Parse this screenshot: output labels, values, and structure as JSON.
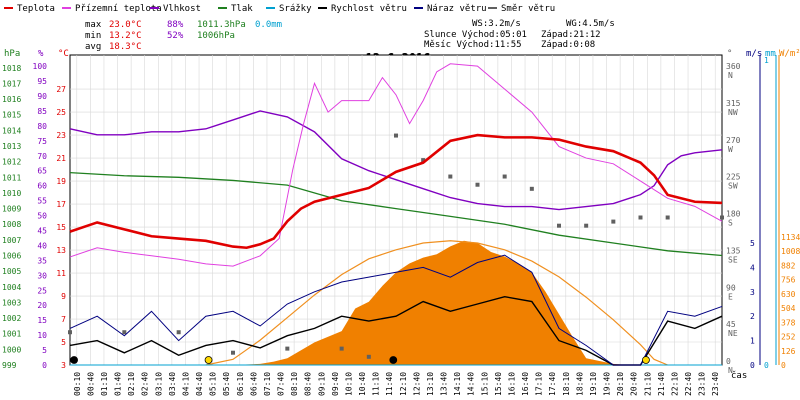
{
  "legend": [
    {
      "label": "Teplota",
      "color": "#e00000"
    },
    {
      "label": "Přízemní teplota",
      "color": "#e040e0"
    },
    {
      "label": "Vlhkost",
      "color": "#8000c0"
    },
    {
      "label": "Tlak",
      "color": "#208020"
    },
    {
      "label": "Srážky",
      "color": "#00a0d0"
    },
    {
      "label": "Rychlost větru",
      "color": "#000000"
    },
    {
      "label": "Náraz větru",
      "color": "#000080"
    },
    {
      "label": "Směr větru",
      "color": "#606060"
    }
  ],
  "stats": {
    "max_label": "max",
    "max_temp": "23.0°C",
    "max_hum": "88%",
    "max_press": "1011.3hPa",
    "max_rain": "0.0mm",
    "min_label": "min",
    "min_temp": "13.2°C",
    "min_hum": "52%",
    "min_press": "1006hPa",
    "avg_label": "avg",
    "avg_temp": "18.3°C"
  },
  "wind_info": {
    "ws": "WS:3.2m/s",
    "wg": "WG:4.5m/s"
  },
  "sun_info": {
    "rise": "Slunce Východ:05:01",
    "set": "Západ:21:12"
  },
  "moon_info": {
    "rise": "Měsíc  Východ:11:55",
    "set": "Západ:0:08"
  },
  "chart_title": "12.6.2016",
  "axis_units": {
    "hpa": "hPa",
    "pct": "%",
    "degc": "°C",
    "deg": "°",
    "ms": "m/s",
    "mm": "mm",
    "wm2": "W/m²",
    "time": "čas"
  },
  "colors": {
    "temp": "#e00000",
    "ground": "#e040e0",
    "hum": "#8000c0",
    "press": "#208020",
    "rain": "#00a0d0",
    "wind": "#000000",
    "gust": "#000080",
    "dir": "#606060",
    "sun_fill": "#f08000",
    "sun_curve": "#f09020",
    "grid": "#d8d8d8",
    "moon": "#ffd800"
  },
  "chart_data": {
    "type": "line",
    "title": "12.6.2016",
    "x_ticks": [
      "00:10",
      "00:40",
      "01:10",
      "01:40",
      "02:10",
      "02:40",
      "03:10",
      "03:40",
      "04:10",
      "04:40",
      "05:10",
      "05:40",
      "06:10",
      "06:40",
      "07:10",
      "07:40",
      "08:10",
      "08:40",
      "09:10",
      "09:40",
      "10:10",
      "10:40",
      "11:10",
      "11:40",
      "12:10",
      "12:40",
      "13:10",
      "13:40",
      "14:10",
      "14:40",
      "15:10",
      "15:40",
      "16:10",
      "16:40",
      "17:10",
      "17:40",
      "18:10",
      "18:40",
      "19:10",
      "19:40",
      "20:10",
      "20:40",
      "21:10",
      "21:40",
      "22:10",
      "22:40",
      "23:10",
      "23:40"
    ],
    "axes": {
      "hpa": {
        "label": "hPa",
        "ticks": [
          999,
          1000,
          1001,
          1002,
          1003,
          1004,
          1005,
          1006,
          1007,
          1008,
          1009,
          1010,
          1011,
          1012,
          1013,
          1014,
          1015,
          1016,
          1017,
          1018
        ]
      },
      "pct": {
        "label": "%",
        "ticks": [
          0,
          5,
          10,
          15,
          20,
          25,
          30,
          35,
          40,
          45,
          50,
          55,
          60,
          65,
          70,
          75,
          80,
          85,
          90,
          95,
          100
        ]
      },
      "degc": {
        "label": "°C",
        "ticks": [
          3,
          5,
          7,
          9,
          11,
          13,
          15,
          17,
          19,
          21,
          23,
          25,
          27
        ]
      },
      "dir": {
        "label": "°",
        "ticks": [
          {
            "v": 0,
            "t": "0",
            "c": "N"
          },
          {
            "v": 45,
            "t": "45",
            "c": "NE"
          },
          {
            "v": 90,
            "t": "90",
            "c": "E"
          },
          {
            "v": 135,
            "t": "135",
            "c": "SE"
          },
          {
            "v": 180,
            "t": "180",
            "c": "S"
          },
          {
            "v": 225,
            "t": "225",
            "c": "SW"
          },
          {
            "v": 270,
            "t": "270",
            "c": "W"
          },
          {
            "v": 315,
            "t": "315",
            "c": "NW"
          },
          {
            "v": 360,
            "t": "360",
            "c": "N"
          }
        ]
      },
      "ms": {
        "label": "m/s",
        "ticks": [
          0,
          1,
          2,
          3,
          4,
          5
        ]
      },
      "mm": {
        "label": "mm",
        "ticks": [
          0,
          1
        ]
      },
      "wm2": {
        "label": "W/m²",
        "ticks": [
          0,
          126,
          252,
          378,
          504,
          630,
          756,
          882,
          1008,
          1134
        ]
      }
    },
    "series": [
      {
        "name": "Teplota",
        "unit": "°C",
        "points": [
          [
            0,
            14.6
          ],
          [
            1,
            15.4
          ],
          [
            2,
            14.8
          ],
          [
            3,
            14.2
          ],
          [
            4,
            14.0
          ],
          [
            5,
            13.8
          ],
          [
            6,
            13.3
          ],
          [
            6.5,
            13.2
          ],
          [
            7,
            13.5
          ],
          [
            7.5,
            14.0
          ],
          [
            8,
            15.5
          ],
          [
            8.5,
            16.6
          ],
          [
            9,
            17.2
          ],
          [
            10,
            17.8
          ],
          [
            11,
            18.4
          ],
          [
            12,
            19.8
          ],
          [
            13,
            20.6
          ],
          [
            14,
            22.5
          ],
          [
            15,
            23.0
          ],
          [
            16,
            22.8
          ],
          [
            17,
            22.8
          ],
          [
            18,
            22.6
          ],
          [
            19,
            22.0
          ],
          [
            20,
            21.6
          ],
          [
            21,
            20.6
          ],
          [
            21.5,
            19.5
          ],
          [
            22,
            17.8
          ],
          [
            23,
            17.2
          ],
          [
            24,
            17.1
          ]
        ]
      },
      {
        "name": "Přízemní teplota",
        "unit": "°C",
        "points": [
          [
            0,
            12.4
          ],
          [
            1,
            13.2
          ],
          [
            2,
            12.8
          ],
          [
            3,
            12.5
          ],
          [
            4,
            12.2
          ],
          [
            5,
            11.8
          ],
          [
            6,
            11.6
          ],
          [
            7,
            12.5
          ],
          [
            7.7,
            14
          ],
          [
            8.2,
            20
          ],
          [
            8.6,
            24
          ],
          [
            9,
            27.5
          ],
          [
            9.5,
            25
          ],
          [
            10,
            26
          ],
          [
            11,
            26
          ],
          [
            11.5,
            28
          ],
          [
            12,
            26.5
          ],
          [
            12.5,
            24
          ],
          [
            13,
            26
          ],
          [
            13.5,
            28.5
          ],
          [
            14,
            29.2
          ],
          [
            15,
            29.0
          ],
          [
            15.5,
            28
          ],
          [
            16,
            27
          ],
          [
            17,
            25
          ],
          [
            17.5,
            23.5
          ],
          [
            18,
            22
          ],
          [
            19,
            21
          ],
          [
            20,
            20.5
          ],
          [
            21,
            19.0
          ],
          [
            22,
            17.5
          ],
          [
            23,
            16.8
          ],
          [
            24,
            15.5
          ]
        ]
      },
      {
        "name": "Vlhkost",
        "unit": "%",
        "points": [
          [
            0,
            79
          ],
          [
            1,
            77
          ],
          [
            2,
            77
          ],
          [
            3,
            78
          ],
          [
            4,
            78
          ],
          [
            5,
            79
          ],
          [
            6,
            82
          ],
          [
            7,
            85
          ],
          [
            8,
            83
          ],
          [
            9,
            78
          ],
          [
            10,
            69
          ],
          [
            11,
            65
          ],
          [
            12,
            62
          ],
          [
            13,
            59
          ],
          [
            14,
            56
          ],
          [
            15,
            54
          ],
          [
            16,
            53
          ],
          [
            17,
            53
          ],
          [
            18,
            52
          ],
          [
            19,
            53
          ],
          [
            20,
            54
          ],
          [
            21,
            57
          ],
          [
            21.5,
            60
          ],
          [
            22,
            67
          ],
          [
            22.5,
            70
          ],
          [
            23,
            71
          ],
          [
            24,
            72
          ]
        ]
      },
      {
        "name": "Tlak",
        "unit": "hPa",
        "points": [
          [
            0,
            1011.3
          ],
          [
            2,
            1011.1
          ],
          [
            4,
            1011.0
          ],
          [
            6,
            1010.8
          ],
          [
            8,
            1010.5
          ],
          [
            10,
            1009.5
          ],
          [
            12,
            1009.0
          ],
          [
            14,
            1008.5
          ],
          [
            16,
            1008.0
          ],
          [
            18,
            1007.3
          ],
          [
            20,
            1006.8
          ],
          [
            22,
            1006.3
          ],
          [
            24,
            1006.0
          ]
        ]
      },
      {
        "name": "Srážky",
        "unit": "mm",
        "points": [
          [
            0,
            0
          ],
          [
            24,
            0
          ]
        ]
      },
      {
        "name": "Rychlost větru",
        "unit": "m/s",
        "points": [
          [
            0,
            0.8
          ],
          [
            1,
            1.0
          ],
          [
            2,
            0.5
          ],
          [
            3,
            1.0
          ],
          [
            4,
            0.4
          ],
          [
            5,
            0.8
          ],
          [
            6,
            1.0
          ],
          [
            7,
            0.7
          ],
          [
            8,
            1.2
          ],
          [
            9,
            1.5
          ],
          [
            10,
            2.0
          ],
          [
            11,
            1.8
          ],
          [
            12,
            2.0
          ],
          [
            13,
            2.6
          ],
          [
            14,
            2.2
          ],
          [
            15,
            2.5
          ],
          [
            16,
            2.8
          ],
          [
            17,
            2.6
          ],
          [
            18,
            1.0
          ],
          [
            19,
            0.6
          ],
          [
            20,
            0
          ],
          [
            21,
            0
          ],
          [
            22,
            1.8
          ],
          [
            23,
            1.5
          ],
          [
            24,
            2.0
          ]
        ]
      },
      {
        "name": "Náraz větru",
        "unit": "m/s",
        "points": [
          [
            0,
            1.5
          ],
          [
            1,
            2.0
          ],
          [
            2,
            1.2
          ],
          [
            3,
            2.2
          ],
          [
            4,
            1.0
          ],
          [
            5,
            2.0
          ],
          [
            6,
            2.2
          ],
          [
            7,
            1.6
          ],
          [
            8,
            2.5
          ],
          [
            9,
            3.0
          ],
          [
            10,
            3.4
          ],
          [
            11,
            3.6
          ],
          [
            12,
            3.8
          ],
          [
            13,
            4.0
          ],
          [
            14,
            3.6
          ],
          [
            15,
            4.2
          ],
          [
            16,
            4.5
          ],
          [
            17,
            3.8
          ],
          [
            18,
            1.5
          ],
          [
            19,
            0.8
          ],
          [
            20,
            0
          ],
          [
            21,
            0
          ],
          [
            22,
            2.2
          ],
          [
            23,
            2.0
          ],
          [
            24,
            2.4
          ]
        ]
      },
      {
        "name": "Směr větru",
        "unit": "°",
        "points": [
          [
            0,
            40
          ],
          [
            2,
            40
          ],
          [
            4,
            40
          ],
          [
            6,
            15
          ],
          [
            8,
            20
          ],
          [
            10,
            20
          ],
          [
            11,
            10
          ],
          [
            12,
            280
          ],
          [
            13,
            250
          ],
          [
            14,
            230
          ],
          [
            15,
            220
          ],
          [
            16,
            230
          ],
          [
            17,
            215
          ],
          [
            18,
            170
          ],
          [
            19,
            170
          ],
          [
            20,
            175
          ],
          [
            21,
            180
          ],
          [
            22,
            180
          ],
          [
            24,
            180
          ]
        ]
      },
      {
        "name": "Sluneční svit",
        "unit": "W/m²",
        "points": [
          [
            5,
            0
          ],
          [
            6,
            0
          ],
          [
            7,
            10
          ],
          [
            7.5,
            30
          ],
          [
            8,
            60
          ],
          [
            9,
            200
          ],
          [
            10,
            300
          ],
          [
            10.5,
            500
          ],
          [
            11,
            560
          ],
          [
            11.5,
            700
          ],
          [
            12,
            820
          ],
          [
            12.5,
            900
          ],
          [
            13,
            950
          ],
          [
            13.5,
            980
          ],
          [
            14,
            1050
          ],
          [
            14.5,
            1100
          ],
          [
            15,
            1080
          ],
          [
            15.5,
            1000
          ],
          [
            16,
            960
          ],
          [
            16.5,
            900
          ],
          [
            17,
            820
          ],
          [
            17.5,
            650
          ],
          [
            18,
            450
          ],
          [
            18.5,
            250
          ],
          [
            19,
            60
          ],
          [
            20,
            10
          ],
          [
            20.5,
            0
          ]
        ]
      },
      {
        "name": "Teoretický svit",
        "unit": "W/m²",
        "points": [
          [
            5,
            0
          ],
          [
            6,
            50
          ],
          [
            7,
            220
          ],
          [
            8,
            420
          ],
          [
            9,
            620
          ],
          [
            10,
            800
          ],
          [
            11,
            940
          ],
          [
            12,
            1020
          ],
          [
            13,
            1080
          ],
          [
            14,
            1100
          ],
          [
            15,
            1080
          ],
          [
            16,
            1020
          ],
          [
            17,
            920
          ],
          [
            18,
            780
          ],
          [
            19,
            600
          ],
          [
            20,
            400
          ],
          [
            21,
            180
          ],
          [
            21.5,
            50
          ],
          [
            22,
            0
          ]
        ]
      }
    ],
    "markers": [
      {
        "name": "sun",
        "t": 5.1
      },
      {
        "name": "sun",
        "t": 21.2
      },
      {
        "name": "moon",
        "t": 0.15
      },
      {
        "name": "moon",
        "t": 11.9
      }
    ]
  }
}
